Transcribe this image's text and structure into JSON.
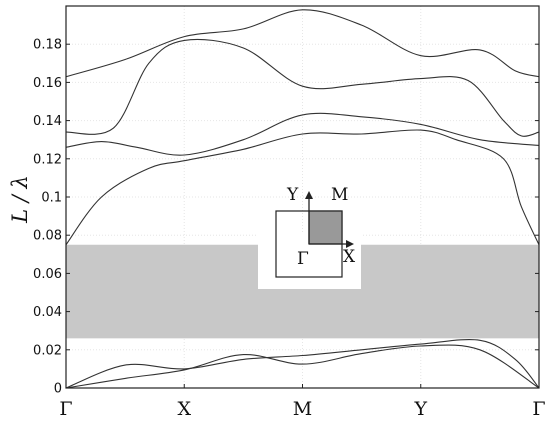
{
  "chart_data": {
    "type": "line",
    "ylabel": "L / λ",
    "xticks": [
      "Γ",
      "X",
      "M",
      "Y",
      "Γ"
    ],
    "x": [
      0,
      1,
      2,
      3,
      4
    ],
    "ylim": [
      0,
      0.2
    ],
    "yticks": [
      "0",
      "0.02",
      "0.04",
      "0.06",
      "0.08",
      "0.1",
      "0.12",
      "0.14",
      "0.16",
      "0.18"
    ],
    "grid": true,
    "bandgap": [
      0.026,
      0.075
    ],
    "series": [
      {
        "points": [
          [
            0,
            0
          ],
          [
            0.5,
            0.005
          ],
          [
            1,
            0.0095
          ],
          [
            1.5,
            0.0175
          ],
          [
            2,
            0.0125
          ],
          [
            2.5,
            0.018
          ],
          [
            3,
            0.022
          ],
          [
            3.5,
            0.02
          ],
          [
            4,
            0
          ]
        ]
      },
      {
        "points": [
          [
            0,
            0
          ],
          [
            0.5,
            0.012
          ],
          [
            1,
            0.01
          ],
          [
            1.5,
            0.015
          ],
          [
            2,
            0.017
          ],
          [
            2.5,
            0.02
          ],
          [
            3,
            0.023
          ],
          [
            3.5,
            0.025
          ],
          [
            3.8,
            0.015
          ],
          [
            4,
            0
          ]
        ]
      },
      {
        "points": [
          [
            0,
            0.075
          ],
          [
            0.3,
            0.1
          ],
          [
            0.7,
            0.115
          ],
          [
            1,
            0.119
          ],
          [
            1.5,
            0.125
          ],
          [
            2,
            0.133
          ],
          [
            2.5,
            0.133
          ],
          [
            3,
            0.135
          ],
          [
            3.3,
            0.13
          ],
          [
            3.7,
            0.12
          ],
          [
            3.85,
            0.095
          ],
          [
            4,
            0.075
          ]
        ]
      },
      {
        "points": [
          [
            0,
            0.126
          ],
          [
            0.3,
            0.129
          ],
          [
            0.6,
            0.126
          ],
          [
            1,
            0.122
          ],
          [
            1.5,
            0.13
          ],
          [
            2,
            0.143
          ],
          [
            2.5,
            0.142
          ],
          [
            3,
            0.138
          ],
          [
            3.5,
            0.13
          ],
          [
            4,
            0.127
          ]
        ]
      },
      {
        "points": [
          [
            0,
            0.134
          ],
          [
            0.4,
            0.136
          ],
          [
            0.7,
            0.17
          ],
          [
            1,
            0.182
          ],
          [
            1.5,
            0.178
          ],
          [
            2,
            0.158
          ],
          [
            2.5,
            0.159
          ],
          [
            3,
            0.162
          ],
          [
            3.4,
            0.161
          ],
          [
            3.7,
            0.14
          ],
          [
            3.85,
            0.132
          ],
          [
            4,
            0.134
          ]
        ]
      },
      {
        "points": [
          [
            0,
            0.163
          ],
          [
            0.5,
            0.172
          ],
          [
            1,
            0.184
          ],
          [
            1.5,
            0.188
          ],
          [
            2,
            0.198
          ],
          [
            2.5,
            0.19
          ],
          [
            3,
            0.174
          ],
          [
            3.5,
            0.177
          ],
          [
            3.8,
            0.166
          ],
          [
            4,
            0.163
          ]
        ]
      }
    ],
    "inset": {
      "labels": {
        "gamma": "Γ",
        "x": "X",
        "y": "Y",
        "m": "M"
      }
    }
  }
}
